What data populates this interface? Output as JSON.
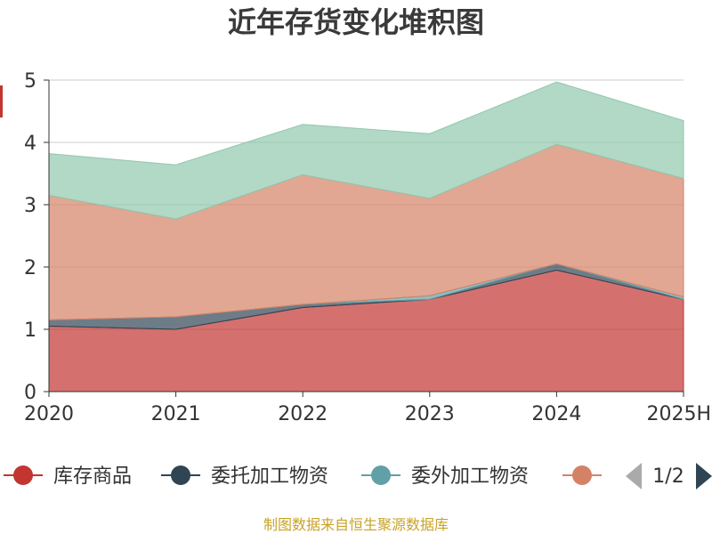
{
  "colors": {
    "series": [
      "#c23531",
      "#2f4554",
      "#61a0a8",
      "#d48265",
      "#91c7ae"
    ],
    "axis": "#333333",
    "grid": "#cccccc",
    "pager_active": "#2f4554",
    "pager_inactive": "#aaaaaa",
    "footer": "#c9a227",
    "ylabel_fragment": "#c23531"
  },
  "chart_data": {
    "type": "area",
    "stacked": true,
    "title": "近年存货变化堆积图",
    "categories": [
      "2020",
      "2021",
      "2022",
      "2023",
      "2024",
      "2025H"
    ],
    "ylim": [
      0,
      5
    ],
    "yticks": [
      0,
      1,
      2,
      3,
      4,
      5
    ],
    "grid": true,
    "series": [
      {
        "name": "库存商品",
        "values": [
          1.05,
          1.0,
          1.35,
          1.48,
          1.95,
          1.48
        ]
      },
      {
        "name": "委托加工物资",
        "values": [
          0.1,
          0.2,
          0.05,
          0.0,
          0.1,
          0.0
        ]
      },
      {
        "name": "委外加工物资",
        "values": [
          0.0,
          0.0,
          0.0,
          0.06,
          0.0,
          0.04
        ]
      },
      {
        "name": "",
        "values": [
          2.0,
          1.57,
          2.08,
          1.56,
          1.92,
          1.9
        ]
      },
      {
        "name": "",
        "values": [
          0.67,
          0.87,
          0.81,
          1.04,
          1.0,
          0.93
        ]
      }
    ],
    "legend": {
      "position": "bottom",
      "page": "1/2"
    }
  },
  "footer": "制图数据来自恒生聚源数据库"
}
